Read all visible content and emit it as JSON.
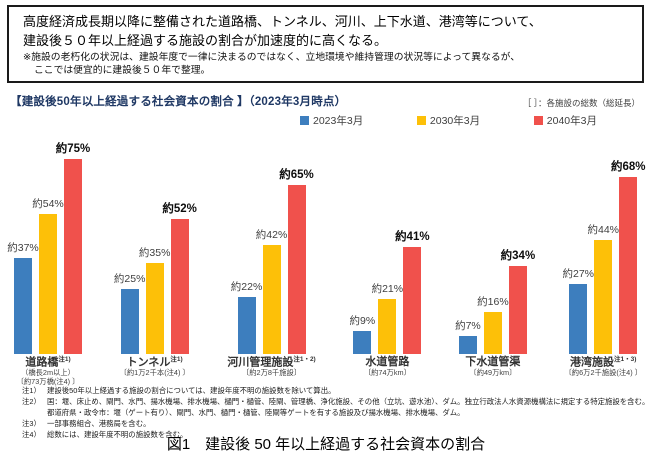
{
  "top_box": {
    "line1": "高度経済成長期以降に整備された道路橋、トンネル、河川、上下水道、港湾等について、",
    "line2": "建設後５０年以上経過する施設の割合が加速度的に高くなる。",
    "note_line1": "※施設の老朽化の状況は、建設年度で一律に決まるのではなく、立地環境や維持管理の状況等によって異なるが、",
    "note_line2": "ここでは便宜的に建設後５０年で整理。"
  },
  "chart_header": {
    "title": "【建設後50年以上経過する社会資本の割合 】（2023年3月時点）",
    "bracket_note": "［ ］：各施設の総数（総延長）"
  },
  "chart_data": {
    "type": "bar",
    "title": "建設後50年以上経過する社会資本の割合（2023年3月時点）",
    "value_prefix": "約",
    "value_suffix": "%",
    "ylim": [
      0,
      80
    ],
    "grid": false,
    "legend_position": "top",
    "categories": [
      {
        "name": "道路橋",
        "sup": "注1)",
        "sublines": [
          "（橋長2m以上）",
          "〔約73万橋(注4) 〕"
        ]
      },
      {
        "name": "トンネル",
        "sup": "注1)",
        "sublines": [
          "〔約1万2千本(注4) 〕"
        ]
      },
      {
        "name": "河川管理施設",
        "sup": "注1・2)",
        "sublines": [
          "〔約2万8千施設〕"
        ]
      },
      {
        "name": "水道管路",
        "sup": "",
        "sublines": [
          "〔約74万km〕"
        ]
      },
      {
        "name": "下水道管渠",
        "sup": "",
        "sublines": [
          "〔約49万km〕"
        ]
      },
      {
        "name": "港湾施設",
        "sup": "注1・3)",
        "sublines": [
          "〔約6万2千施設(注4) 〕"
        ]
      }
    ],
    "series": [
      {
        "name": "2023年3月",
        "color": "#3d7ebe",
        "values": [
          37,
          25,
          22,
          9,
          7,
          27
        ]
      },
      {
        "name": "2030年3月",
        "color": "#fdc008",
        "values": [
          54,
          35,
          42,
          21,
          16,
          44
        ]
      },
      {
        "name": "2040年3月",
        "color": "#f0514c",
        "values": [
          75,
          52,
          65,
          41,
          34,
          68
        ]
      }
    ]
  },
  "footnotes": [
    {
      "label": "注1）",
      "lines": [
        "建設後50年以上経過する施設の割合については、建設年度不明の施設数を除いて算出。"
      ]
    },
    {
      "label": "注2）",
      "lines": [
        "国：堰、床止め、閘門、水門、揚水機場、排水機場、樋門・樋管、陸閘、管理橋、浄化施設、その他（立坑、遊水池）、ダム。独立行政法人水資源機構法に規定する特定施設を含む。",
        "都道府県・政令市：堰（ゲート有り）、閘門、水門、樋門・樋管、陸閘等ゲートを有する施設及び揚水機場、排水機場、ダム。"
      ]
    },
    {
      "label": "注3）",
      "lines": [
        "一部事務組合、港務局を含む。"
      ]
    },
    {
      "label": "注4）",
      "lines": [
        "総数には、建設年度不明の施設数を含む。"
      ]
    }
  ],
  "caption": "図1　建設後 50 年以上経過する社会資本の割合"
}
